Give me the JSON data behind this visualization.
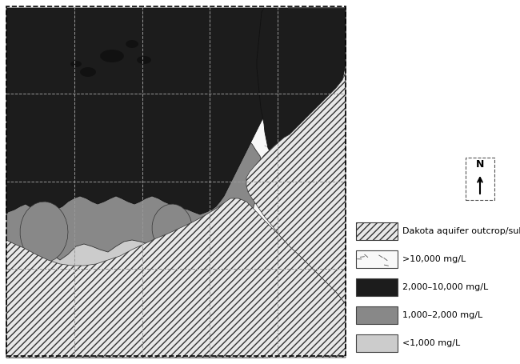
{
  "background_color": "#ffffff",
  "colors": {
    "lt1000": "#cccccc",
    "med1000_2000": "#888888",
    "dark2000_10000": "#1c1c1c",
    "hatch_fg": "#333333",
    "tick_color": "#666666",
    "grid_color": "#999999",
    "border_color": "#000000"
  },
  "legend": {
    "lt1000_label": "<1,000 mg/L",
    "k1_2_label": "1,000–2,000 mg/L",
    "k2_10_label": "2,000–10,000 mg/L",
    "gt10_label": ">10,000 mg/L",
    "dakota_label": "Dakota aquifer outcrop/subcrop"
  },
  "figsize": [
    6.5,
    4.55
  ],
  "dpi": 100
}
